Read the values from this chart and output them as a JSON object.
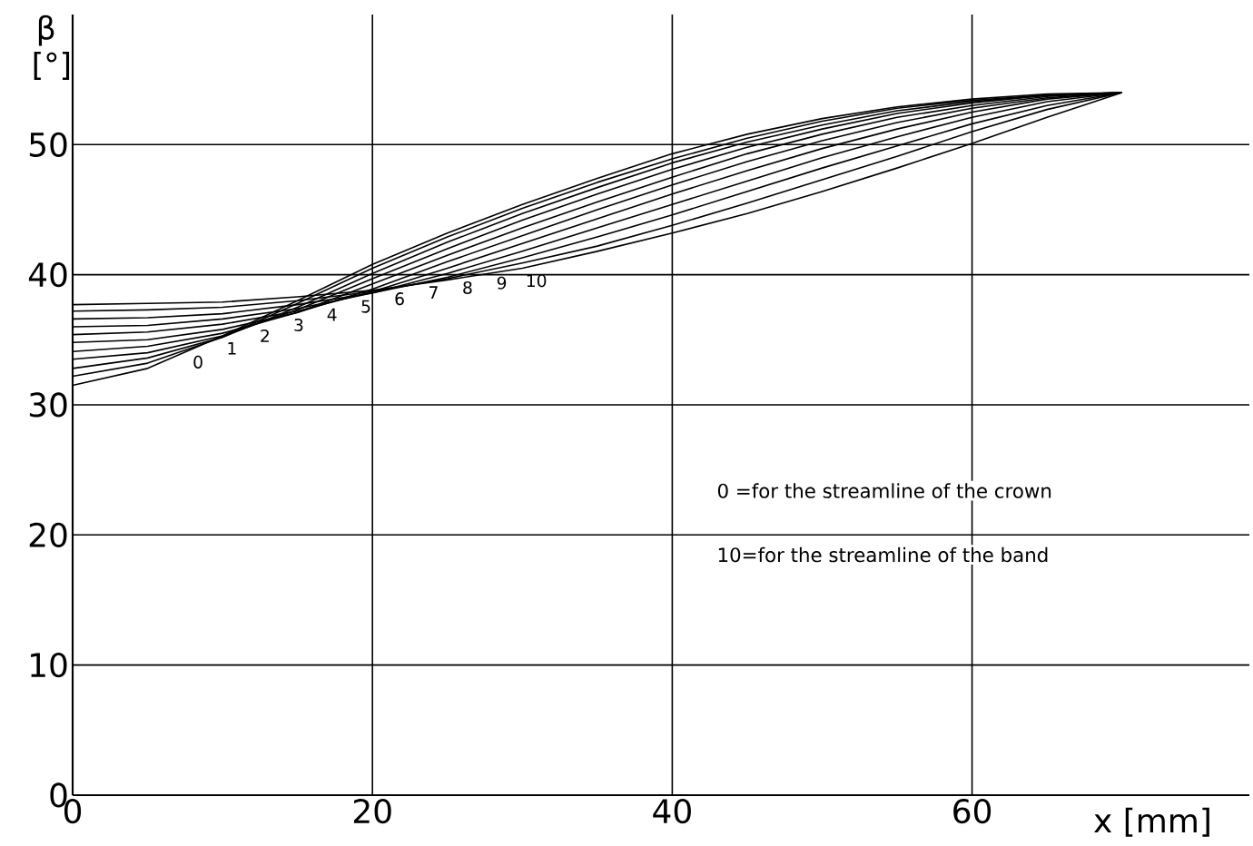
{
  "chart_data": {
    "type": "line",
    "xlabel": "x [mm]",
    "ylabel": "β [°]",
    "x": [
      0,
      5,
      10,
      15,
      20,
      25,
      30,
      35,
      40,
      45,
      50,
      55,
      60,
      65,
      70
    ],
    "xlim": [
      0,
      78.5
    ],
    "ylim": [
      0,
      60
    ],
    "xticks": [
      0,
      20,
      40,
      60
    ],
    "yticks": [
      0,
      10,
      20,
      30,
      40,
      50
    ],
    "grid": true,
    "legend": false,
    "marker": "none",
    "line_style": "solid",
    "annotations": [
      "0 =for the streamline of the crown",
      "10=for the streamline of the band"
    ],
    "series": [
      {
        "name": "0",
        "color": "#000000",
        "values": [
          31.5,
          32.8,
          35.3,
          38.0,
          40.8,
          43.2,
          45.4,
          47.4,
          49.3,
          50.8,
          52.0,
          52.9,
          53.5,
          53.9,
          54.0
        ]
      },
      {
        "name": "1",
        "color": "#000000",
        "values": [
          32.2,
          33.2,
          35.2,
          37.8,
          40.5,
          42.9,
          45.1,
          47.1,
          48.9,
          50.5,
          51.8,
          52.8,
          53.4,
          53.8,
          54.0
        ]
      },
      {
        "name": "2",
        "color": "#000000",
        "values": [
          32.8,
          33.6,
          35.2,
          37.5,
          40.1,
          42.5,
          44.7,
          46.7,
          48.6,
          50.2,
          51.5,
          52.6,
          53.3,
          53.8,
          54.0
        ]
      },
      {
        "name": "3",
        "color": "#000000",
        "values": [
          33.5,
          34.0,
          35.3,
          37.3,
          39.7,
          42.0,
          44.2,
          46.2,
          48.1,
          49.8,
          51.2,
          52.4,
          53.2,
          53.8,
          54.0
        ]
      },
      {
        "name": "4",
        "color": "#000000",
        "values": [
          34.1,
          34.5,
          35.5,
          37.1,
          39.3,
          41.5,
          43.6,
          45.6,
          47.5,
          49.3,
          50.8,
          52.1,
          53.0,
          53.7,
          54.0
        ]
      },
      {
        "name": "5",
        "color": "#000000",
        "values": [
          34.8,
          35.0,
          35.8,
          37.1,
          38.9,
          41.0,
          43.0,
          45.0,
          46.9,
          48.7,
          50.3,
          51.7,
          52.8,
          53.6,
          54.0
        ]
      },
      {
        "name": "6",
        "color": "#000000",
        "values": [
          35.4,
          35.6,
          36.2,
          37.2,
          38.7,
          40.5,
          42.4,
          44.3,
          46.2,
          48.0,
          49.7,
          51.2,
          52.5,
          53.5,
          54.0
        ]
      },
      {
        "name": "7",
        "color": "#000000",
        "values": [
          36.0,
          36.1,
          36.6,
          37.4,
          38.6,
          40.1,
          41.8,
          43.6,
          45.4,
          47.2,
          49.0,
          50.6,
          52.1,
          53.3,
          54.0
        ]
      },
      {
        "name": "8",
        "color": "#000000",
        "values": [
          36.6,
          36.7,
          37.0,
          37.7,
          38.6,
          39.8,
          41.3,
          42.9,
          44.6,
          46.4,
          48.2,
          49.9,
          51.6,
          53.0,
          54.0
        ]
      },
      {
        "name": "9",
        "color": "#000000",
        "values": [
          37.2,
          37.3,
          37.5,
          38.0,
          38.7,
          39.7,
          40.9,
          42.2,
          43.8,
          45.5,
          47.3,
          49.1,
          51.0,
          52.7,
          54.0
        ]
      },
      {
        "name": "10",
        "color": "#000000",
        "values": [
          37.7,
          37.8,
          37.9,
          38.3,
          38.8,
          39.6,
          40.5,
          41.8,
          43.2,
          44.7,
          46.4,
          48.2,
          50.1,
          52.1,
          54.0
        ]
      }
    ]
  }
}
